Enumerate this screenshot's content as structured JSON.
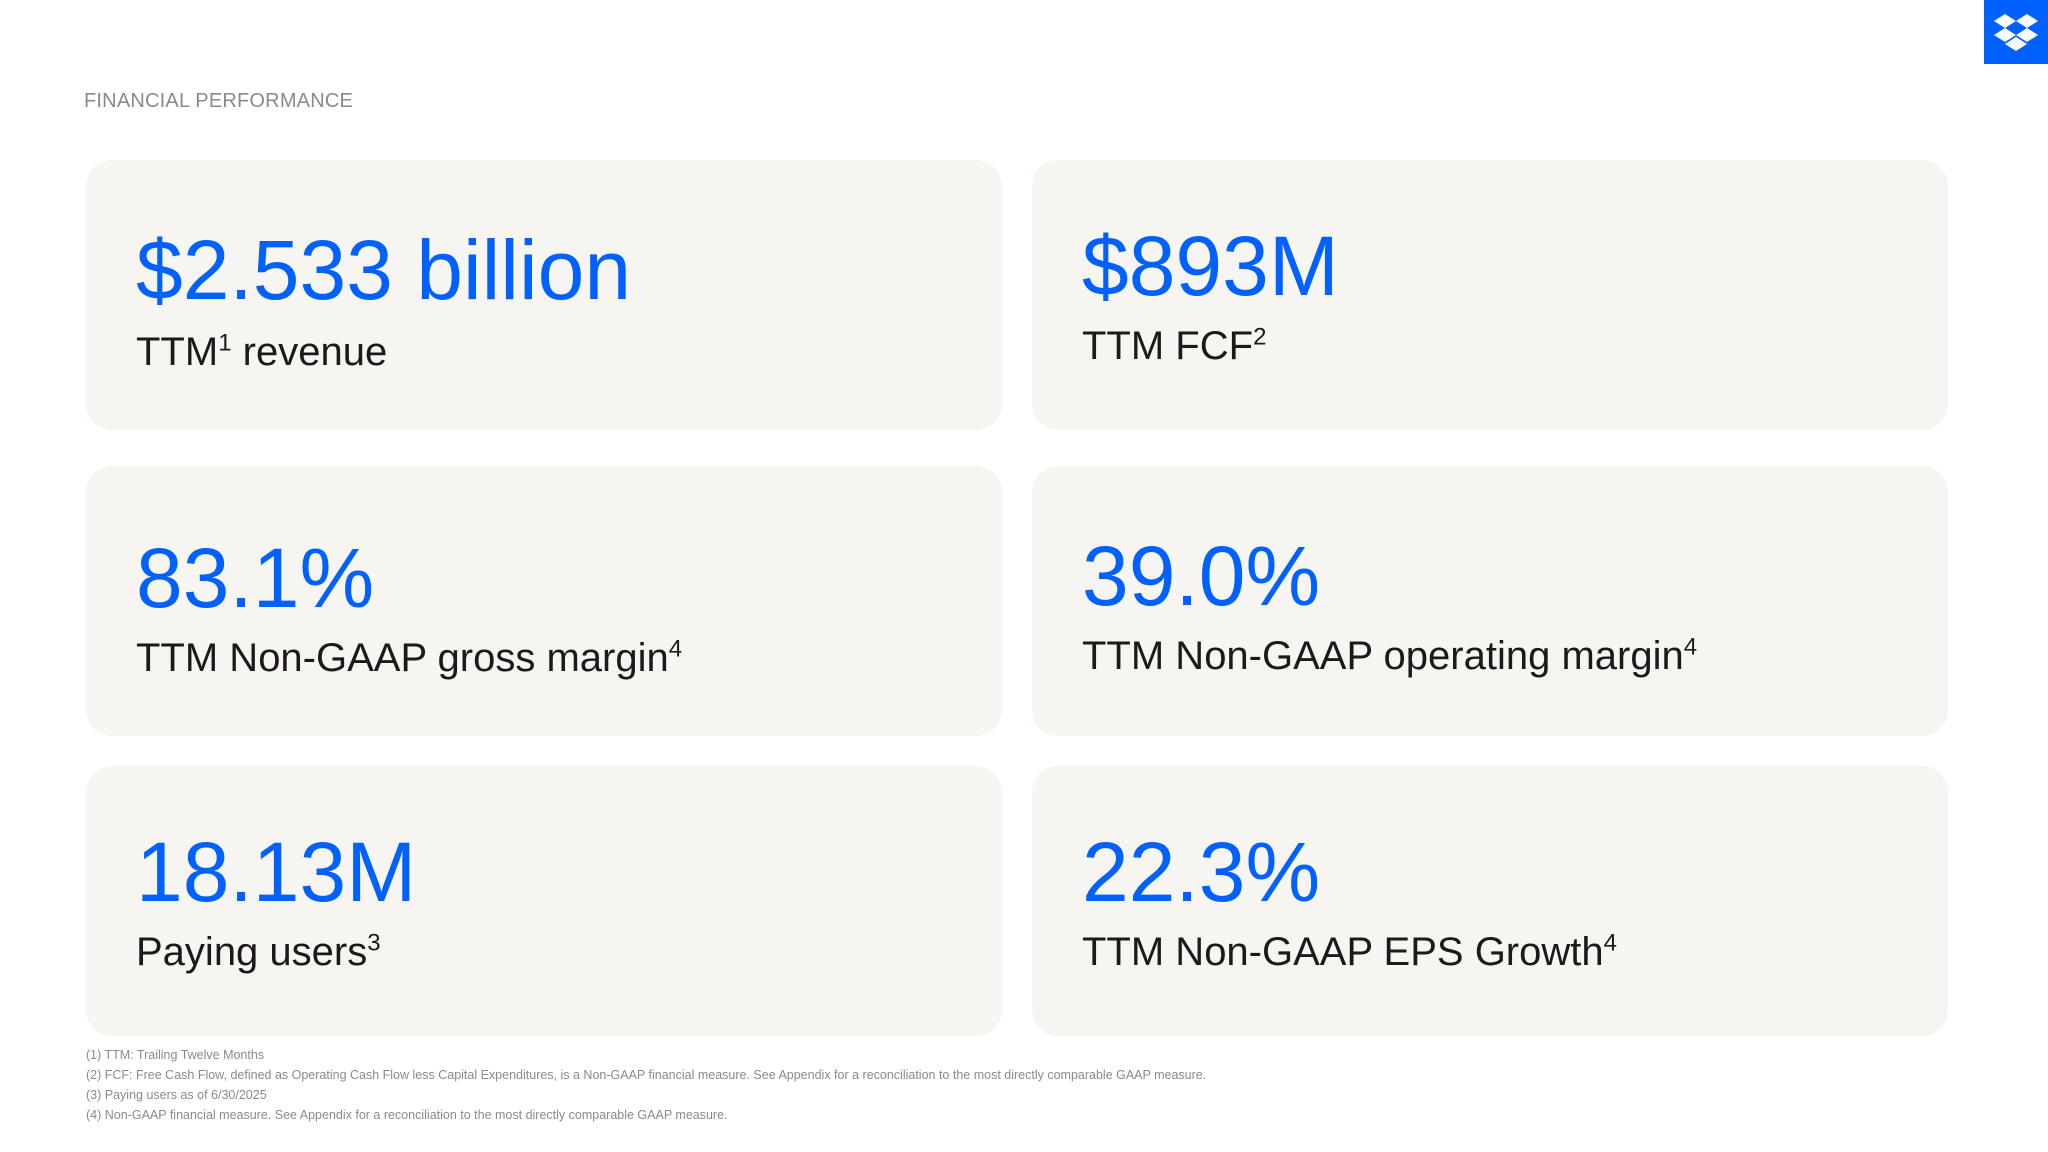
{
  "section_label": "FINANCIAL PERFORMANCE",
  "logo_icon": "dropbox-logo-icon",
  "colors": {
    "accent": "#0061fe",
    "card_bg": "#f7f5f2",
    "text": "#1e1919",
    "muted": "#8a8a8a"
  },
  "cards": [
    {
      "value": "$2.533 billion",
      "label": "TTM",
      "sup": "1",
      "label_after": " revenue"
    },
    {
      "value": "$893M",
      "label": "TTM FCF",
      "sup": "2",
      "label_after": ""
    },
    {
      "value": "83.1%",
      "label": "TTM Non-GAAP gross margin",
      "sup": "4",
      "label_after": ""
    },
    {
      "value": "39.0%",
      "label": "TTM Non-GAAP operating margin",
      "sup": "4",
      "label_after": ""
    },
    {
      "value": "18.13M",
      "label": "Paying users",
      "sup": "3",
      "label_after": ""
    },
    {
      "value": "22.3%",
      "label": "TTM Non-GAAP EPS Growth",
      "sup": "4",
      "label_after": ""
    }
  ],
  "footnotes": [
    "(1) TTM: Trailing Twelve Months",
    "(2) FCF: Free Cash Flow, defined as Operating Cash Flow less Capital Expenditures, is a Non-GAAP financial measure.  See Appendix for a reconciliation to the most directly comparable GAAP measure.",
    "(3) Paying users as of 6/30/2025",
    "(4) Non-GAAP financial measure. See Appendix for a reconciliation to the most directly comparable GAAP measure."
  ]
}
